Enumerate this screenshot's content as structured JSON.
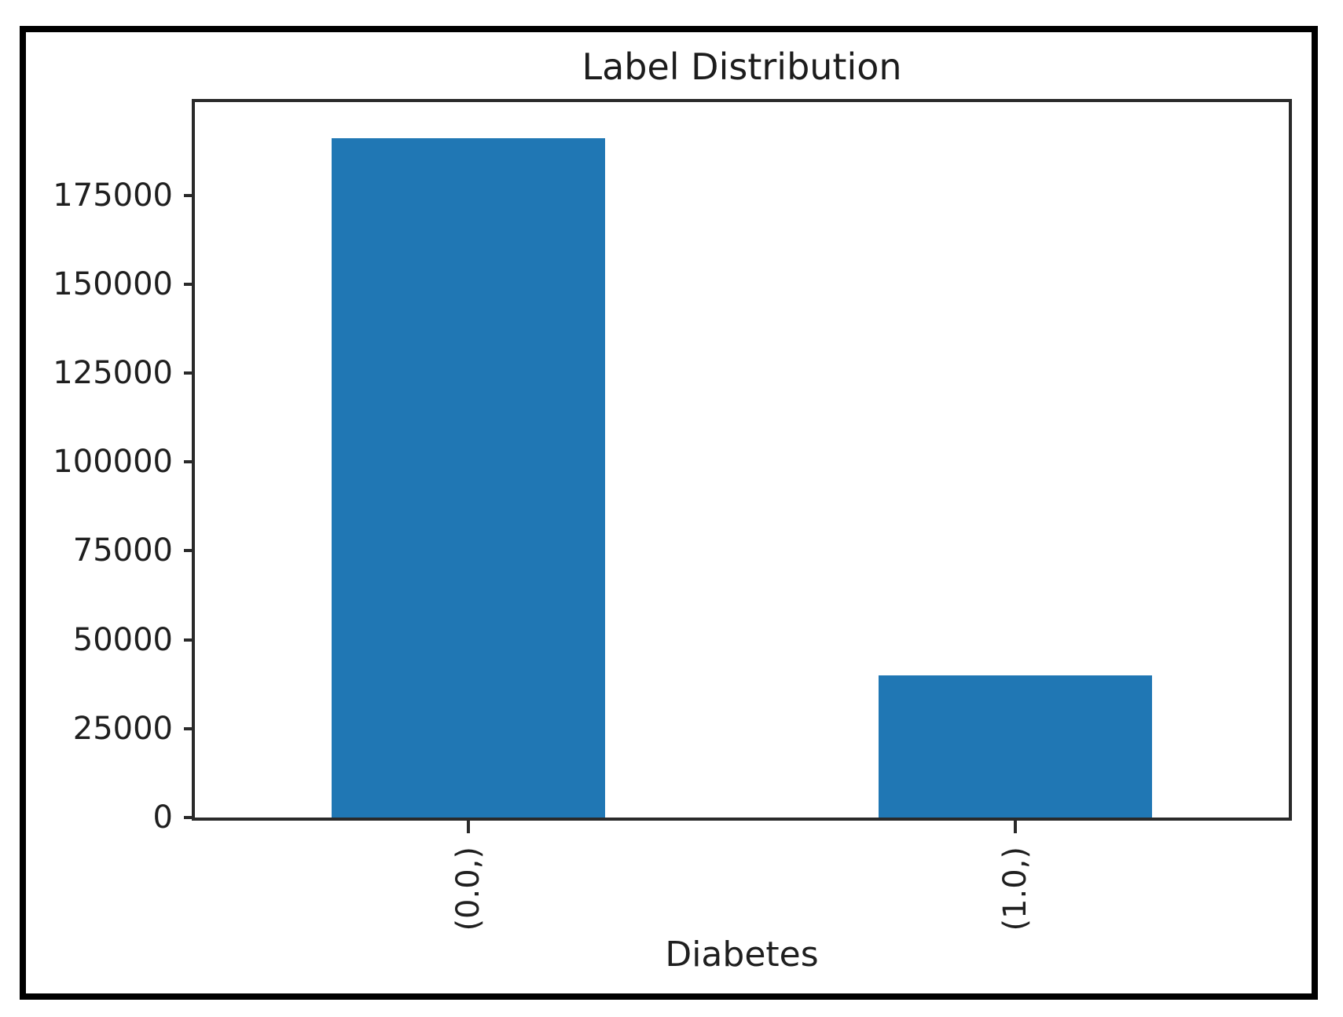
{
  "figure": {
    "background_color": "#ffffff",
    "frame_color": "#000000",
    "spine_color": "#2a2a2a",
    "text_color": "#1f1f1f"
  },
  "chart_data": {
    "type": "bar",
    "title": "Label Distribution",
    "xlabel": "Diabetes",
    "ylabel": "",
    "categories": [
      "(0.0,)",
      "(1.0,)"
    ],
    "values": [
      191000,
      40000
    ],
    "yticks": [
      0,
      25000,
      50000,
      75000,
      100000,
      125000,
      150000,
      175000
    ],
    "ylim": [
      0,
      201200
    ],
    "bar_color": "#2077b4",
    "bar_width_fraction": 0.5,
    "x_tick_rotation_deg": 90,
    "grid": false,
    "legend": false
  }
}
